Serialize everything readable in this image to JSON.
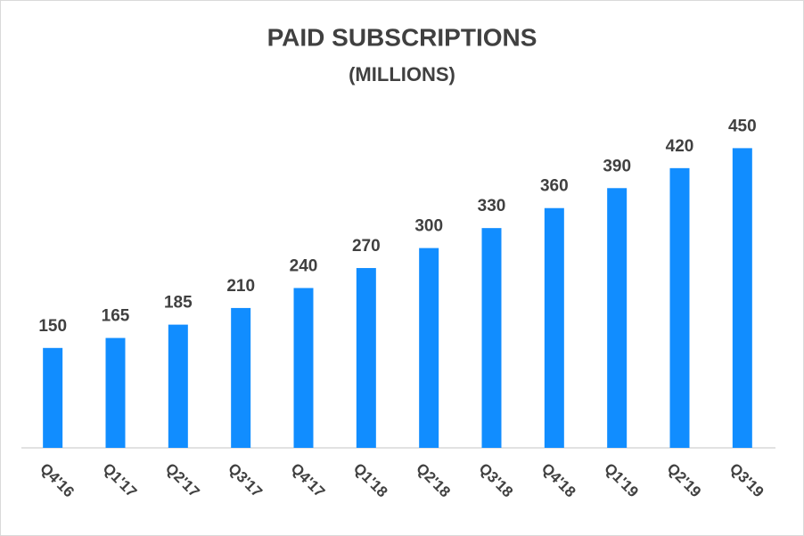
{
  "chart_data": {
    "type": "bar",
    "title": "PAID SUBSCRIPTIONS",
    "subtitle": "(MILLIONS)",
    "categories": [
      "Q4'16",
      "Q1'17",
      "Q2'17",
      "Q3'17",
      "Q4'17",
      "Q1'18",
      "Q2'18",
      "Q3'18",
      "Q4'18",
      "Q1'19",
      "Q2'19",
      "Q3'19"
    ],
    "values": [
      150,
      165,
      185,
      210,
      240,
      270,
      300,
      330,
      360,
      390,
      420,
      450
    ],
    "color": "#118dff",
    "ylim": [
      0,
      500
    ]
  }
}
